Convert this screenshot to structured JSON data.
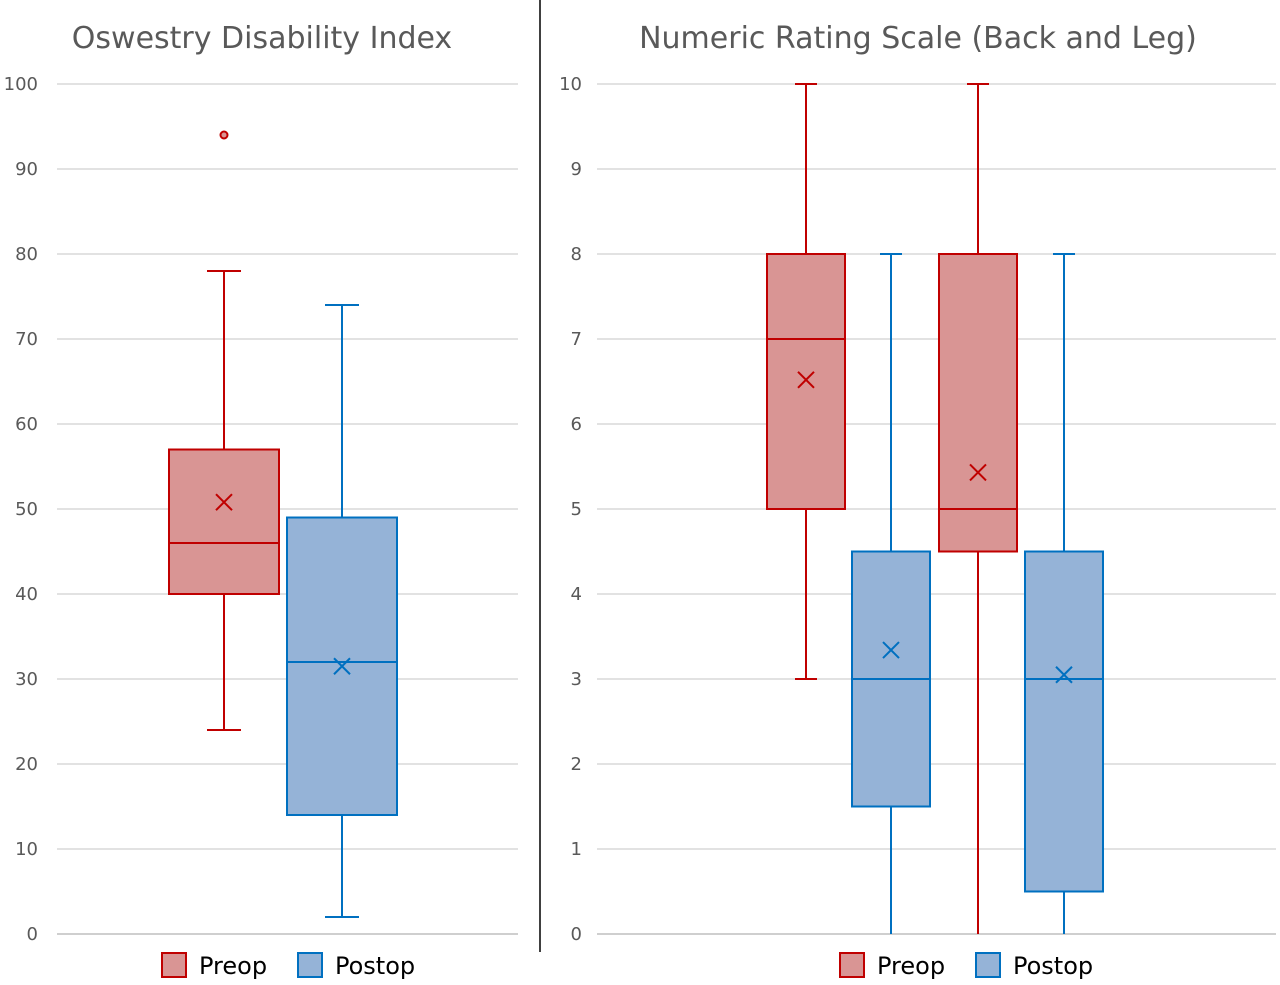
{
  "colors": {
    "preop_fill": "#d99594",
    "preop_line": "#c00000",
    "postop_fill": "#95b3d7",
    "postop_line": "#0070c0",
    "grid": "#d9d9d9",
    "text": "#595959",
    "divider": "#404040"
  },
  "chart_data": [
    {
      "type": "box",
      "title": "Oswestry Disability Index",
      "ylim": [
        0,
        100
      ],
      "y_ticks": [
        "0",
        "10",
        "20",
        "30",
        "40",
        "50",
        "60",
        "70",
        "80",
        "90",
        "100"
      ],
      "legend": [
        "Preop",
        "Postop"
      ],
      "legend_position": "bottom",
      "grid": true,
      "boxes": [
        {
          "series": "Preop",
          "min": 24,
          "q1": 40,
          "median": 46,
          "q3": 57,
          "max": 78,
          "mean": 50.8,
          "outliers": [
            94
          ]
        },
        {
          "series": "Postop",
          "min": 2,
          "q1": 14,
          "median": 32,
          "q3": 49,
          "max": 74,
          "mean": 31.5,
          "outliers": []
        }
      ]
    },
    {
      "type": "box",
      "title": "Numeric Rating Scale (Back and Leg)",
      "ylim": [
        0,
        10
      ],
      "y_ticks": [
        "0",
        "1",
        "2",
        "3",
        "4",
        "5",
        "6",
        "7",
        "8",
        "9",
        "10"
      ],
      "legend": [
        "Preop",
        "Postop"
      ],
      "legend_position": "bottom",
      "grid": true,
      "boxes": [
        {
          "series": "Preop",
          "min": 3,
          "q1": 5,
          "median": 7,
          "q3": 8,
          "max": 10,
          "mean": 6.52,
          "outliers": []
        },
        {
          "series": "Postop",
          "min": 0,
          "q1": 1.5,
          "median": 3,
          "q3": 4.5,
          "max": 8,
          "mean": 3.34,
          "outliers": []
        },
        {
          "series": "Preop",
          "min": 0,
          "q1": 4.5,
          "median": 5,
          "q3": 8,
          "max": 10,
          "mean": 5.43,
          "outliers": []
        },
        {
          "series": "Postop",
          "min": 0,
          "q1": 0.5,
          "median": 3,
          "q3": 4.5,
          "max": 8,
          "mean": 3.05,
          "outliers": []
        }
      ]
    }
  ]
}
